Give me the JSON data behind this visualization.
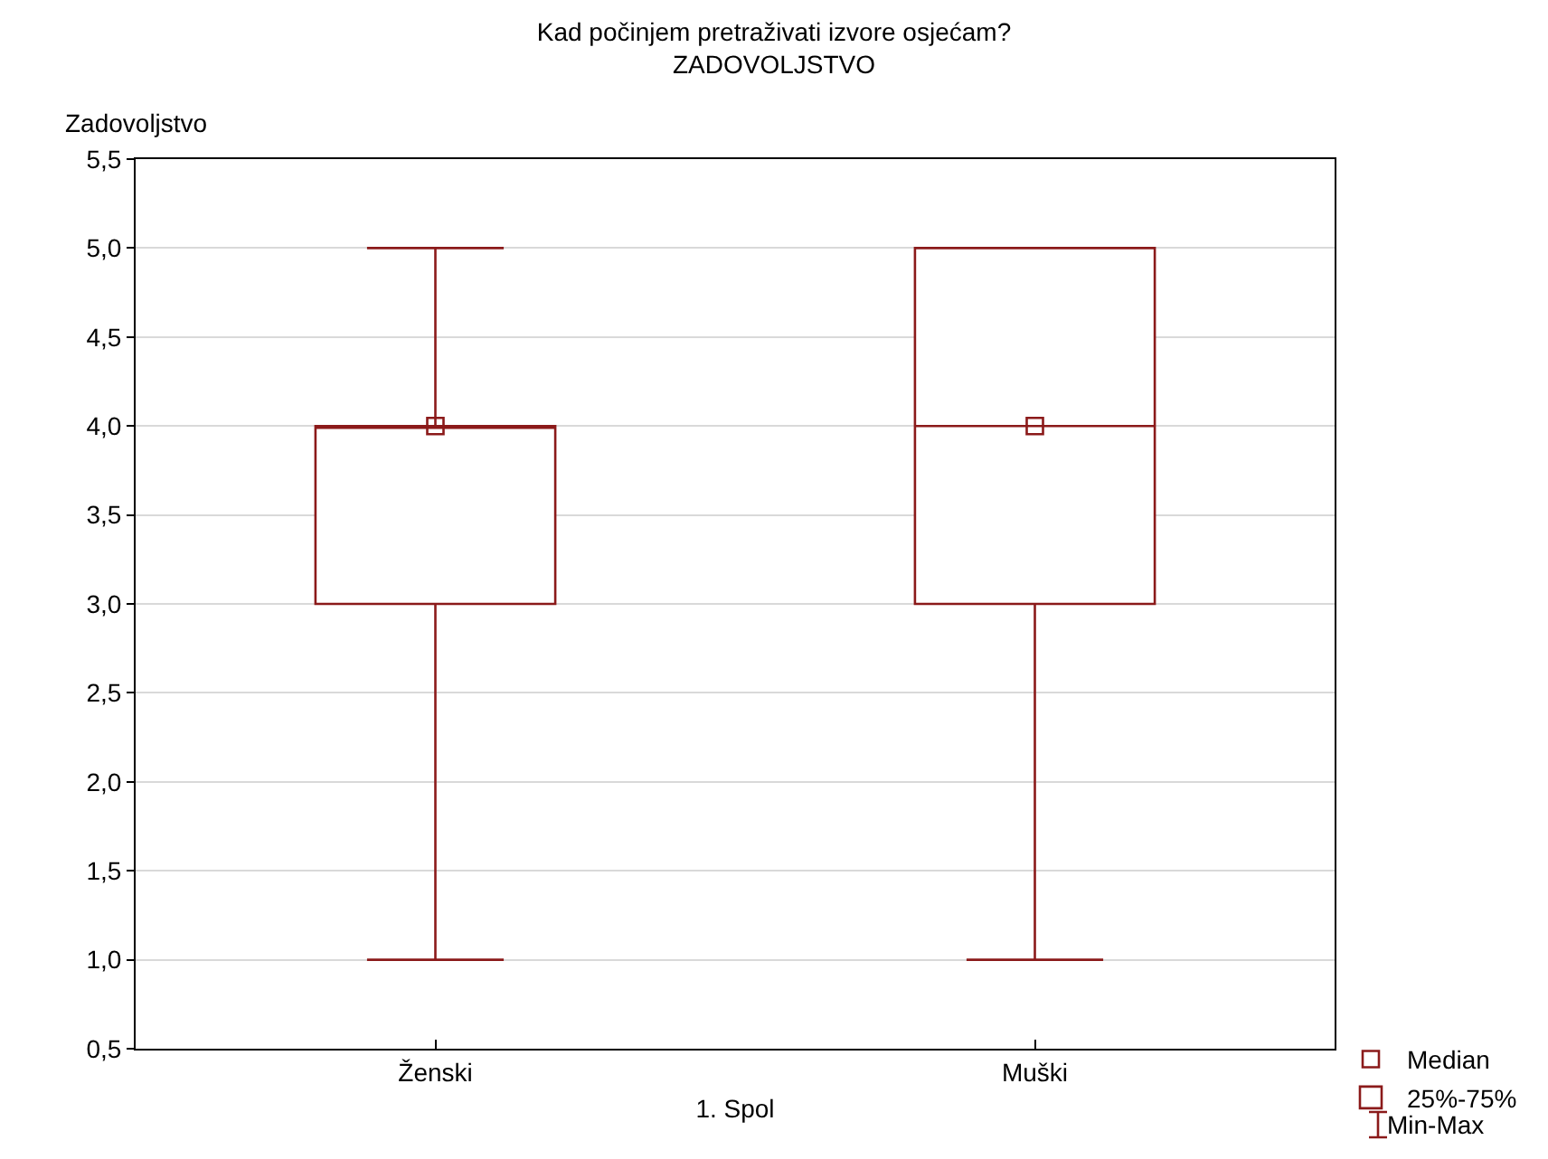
{
  "chart_data": {
    "type": "box",
    "title": "Kad počinjem pretraživati izvore osjećam?",
    "subtitle": "ZADOVOLJSTVO",
    "xlabel": "1. Spol",
    "ylabel": "Zadovoljstvo",
    "categories": [
      "Ženski",
      "Muški"
    ],
    "series": [
      {
        "name": "Median",
        "type": "scatter",
        "marker": "square",
        "color": "#8b1a1a",
        "x": [
          "Ženski",
          "Muški"
        ],
        "values": [
          4,
          4
        ]
      },
      {
        "name": "25%-75%",
        "type": "box",
        "color": "#8b1a1a",
        "boxes": [
          {
            "low": 1,
            "q1": 3,
            "median": 4,
            "q3": 4,
            "high": 5
          },
          {
            "low": 1,
            "q1": 3,
            "median": 4,
            "q3": 5,
            "high": 5
          }
        ]
      }
    ],
    "annotations": [
      "Min-Max"
    ],
    "ylim": [
      0.5,
      5.5
    ],
    "yticks": [
      {
        "value": 0.5,
        "label": "0,5"
      },
      {
        "value": 1,
        "label": "1,0"
      },
      {
        "value": 1.5,
        "label": "1,5"
      },
      {
        "value": 2,
        "label": "2,0"
      },
      {
        "value": 2.5,
        "label": "2,5"
      },
      {
        "value": 3,
        "label": "3,0"
      },
      {
        "value": 3.5,
        "label": "3,5"
      },
      {
        "value": 4,
        "label": "4,0"
      },
      {
        "value": 4.5,
        "label": "4,5"
      },
      {
        "value": 5,
        "label": "5,0"
      },
      {
        "value": 5.5,
        "label": "5,5"
      }
    ],
    "grid": "y",
    "legend": "bottom right"
  }
}
